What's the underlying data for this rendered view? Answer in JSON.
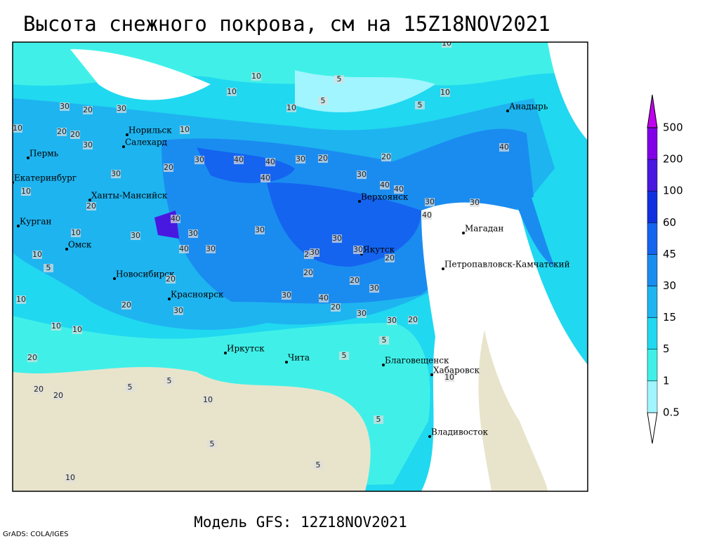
{
  "header": {
    "title": "Высота снежного покрова, см на 15Z18NOV2021"
  },
  "footer": {
    "subtitle": "Модель GFS: 12Z18NOV2021",
    "credit": "GrADS: COLA/IGES"
  },
  "legend": {
    "levels": [
      0.5,
      1,
      5,
      15,
      30,
      45,
      60,
      100,
      200,
      500
    ],
    "colors": [
      "#ffffff",
      "#a0f5ff",
      "#40f0e8",
      "#20d8f0",
      "#1eb4f0",
      "#1a8cf0",
      "#1464f0",
      "#1030e0",
      "#4818e0",
      "#8000e8",
      "#c000f0"
    ]
  },
  "cities": [
    "Норильск",
    "Салехард",
    "Пермь",
    "Екатеринбург",
    "Ханты-Мансийск",
    "Курган",
    "Омск",
    "Новосибирск",
    "Красноярск",
    "Иркутск",
    "Чита",
    "Верхоянск",
    "Якутск",
    "Магадан",
    "Петропавловск-Камчатский",
    "Анадырь",
    "Благовещенск",
    "Хабаровск",
    "Владивосток"
  ],
  "contour_labels": [
    10,
    5,
    10,
    10,
    5,
    10,
    10,
    5,
    30,
    20,
    30,
    10,
    20,
    20,
    10,
    30,
    20,
    30,
    40,
    40,
    40,
    30,
    20,
    30,
    40,
    40,
    30,
    40,
    30,
    40,
    20,
    10,
    10,
    30,
    30,
    40,
    30,
    30,
    30,
    20,
    30,
    20,
    30,
    20,
    30,
    10,
    10,
    5,
    20,
    20,
    30,
    20,
    40,
    30,
    40,
    20,
    30,
    30,
    20,
    30,
    20,
    10,
    20,
    5,
    5,
    20,
    5,
    5,
    10,
    5,
    10,
    20,
    5,
    5,
    10,
    10
  ]
}
